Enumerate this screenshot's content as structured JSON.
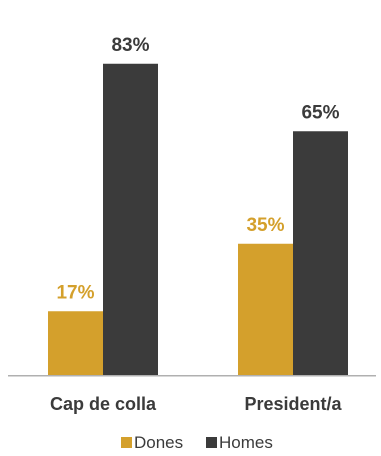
{
  "chart_data": {
    "type": "bar",
    "title": "",
    "xlabel": "",
    "ylabel": "",
    "ylim": [
      0,
      100
    ],
    "grid": false,
    "legend_position": "bottom",
    "categories": [
      "Cap de colla",
      "President/a"
    ],
    "series": [
      {
        "name": "Dones",
        "values": [
          17,
          35
        ],
        "labels": [
          "17%",
          "35%"
        ],
        "color": "#d4a02c",
        "label_color": "#d4a02c"
      },
      {
        "name": "Homes",
        "values": [
          83,
          65
        ],
        "labels": [
          "83%",
          "65%"
        ],
        "color": "#3b3b3b",
        "label_color": "#3b3b3b"
      }
    ]
  }
}
